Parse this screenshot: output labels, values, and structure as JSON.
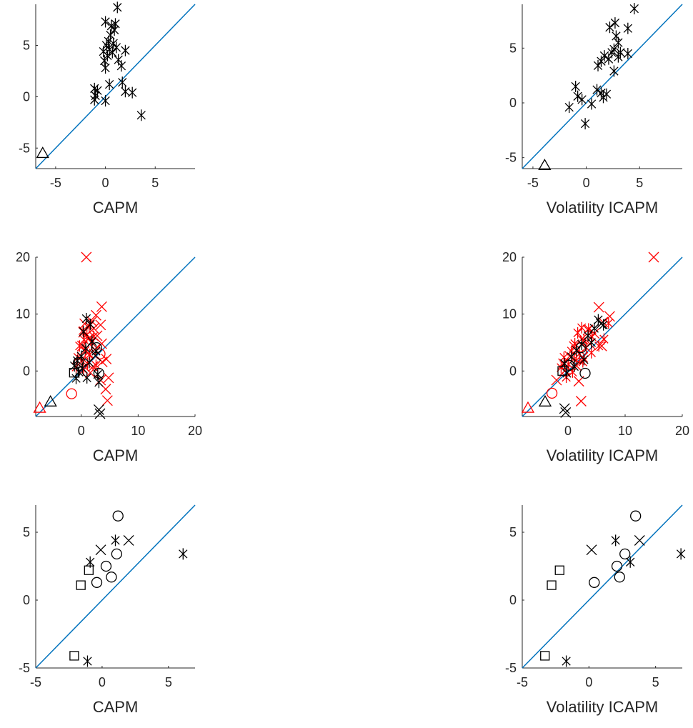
{
  "chart_data": [
    {
      "type": "scatter",
      "xlabel": "CAPM",
      "xlim": [
        -7,
        9
      ],
      "ylim": [
        -7,
        9
      ],
      "xticks": [
        "-5",
        "0",
        "5"
      ],
      "yticks": [
        "-5",
        "0",
        "5"
      ],
      "diagonal": true,
      "series": [
        {
          "marker": "asterisk",
          "color": "#000000",
          "points": [
            [
              1.2,
              8.7
            ],
            [
              0.0,
              7.3
            ],
            [
              1.0,
              7.1
            ],
            [
              0.6,
              6.9
            ],
            [
              0.9,
              6.5
            ],
            [
              0.5,
              6.0
            ],
            [
              0.3,
              5.4
            ],
            [
              0.8,
              5.2
            ],
            [
              0.1,
              5.0
            ],
            [
              1.1,
              4.8
            ],
            [
              0.4,
              4.6
            ],
            [
              -0.2,
              4.4
            ],
            [
              2.0,
              4.5
            ],
            [
              0.7,
              4.3
            ],
            [
              0.2,
              4.0
            ],
            [
              1.3,
              3.6
            ],
            [
              -0.1,
              3.5
            ],
            [
              0.0,
              2.8
            ],
            [
              1.6,
              3.0
            ],
            [
              -1.1,
              0.8
            ],
            [
              -0.8,
              0.6
            ],
            [
              -1.0,
              0.1
            ],
            [
              -1.1,
              -0.3
            ],
            [
              0.0,
              -0.4
            ],
            [
              0.4,
              1.2
            ],
            [
              1.7,
              1.4
            ],
            [
              2.0,
              0.5
            ],
            [
              2.7,
              0.4
            ],
            [
              3.6,
              -1.8
            ]
          ]
        },
        {
          "marker": "triangle",
          "color": "#000000",
          "points": [
            [
              -6.3,
              -5.5
            ]
          ]
        }
      ]
    },
    {
      "type": "scatter",
      "xlabel": "Volatility ICAPM",
      "xlim": [
        -6,
        9
      ],
      "ylim": [
        -6,
        9
      ],
      "xticks": [
        "-5",
        "0",
        "5"
      ],
      "yticks": [
        "-5",
        "0",
        "5"
      ],
      "diagonal": true,
      "series": [
        {
          "marker": "asterisk",
          "color": "#000000",
          "points": [
            [
              4.5,
              8.6
            ],
            [
              2.7,
              7.3
            ],
            [
              2.2,
              6.9
            ],
            [
              3.9,
              6.8
            ],
            [
              2.8,
              6.1
            ],
            [
              3.0,
              5.5
            ],
            [
              2.6,
              4.9
            ],
            [
              3.2,
              4.6
            ],
            [
              2.4,
              4.6
            ],
            [
              3.9,
              4.5
            ],
            [
              1.7,
              4.3
            ],
            [
              2.1,
              4.0
            ],
            [
              1.4,
              3.8
            ],
            [
              1.1,
              3.4
            ],
            [
              3.0,
              4.2
            ],
            [
              2.6,
              2.9
            ],
            [
              -1.0,
              1.5
            ],
            [
              -0.8,
              0.6
            ],
            [
              -0.4,
              0.3
            ],
            [
              1.0,
              1.2
            ],
            [
              1.4,
              0.9
            ],
            [
              1.9,
              0.8
            ],
            [
              1.6,
              0.5
            ],
            [
              0.5,
              -0.1
            ],
            [
              -1.6,
              -0.4
            ],
            [
              -0.1,
              -1.9
            ]
          ]
        },
        {
          "marker": "triangle",
          "color": "#000000",
          "points": [
            [
              -3.9,
              -5.7
            ]
          ]
        }
      ]
    },
    {
      "type": "scatter",
      "xlabel": "CAPM",
      "xlim": [
        -8,
        20
      ],
      "ylim": [
        -8,
        20
      ],
      "xticks": [
        "0",
        "10",
        "20"
      ],
      "yticks": [
        "0",
        "10",
        "20"
      ],
      "diagonal": true,
      "series": [
        {
          "marker": "x",
          "color": "#ff0000",
          "points": [
            [
              0.9,
              20.0
            ],
            [
              3.6,
              11.3
            ],
            [
              2.6,
              9.8
            ],
            [
              1.9,
              8.7
            ],
            [
              3.4,
              8.1
            ],
            [
              0.6,
              8.3
            ],
            [
              2.2,
              7.5
            ],
            [
              0.4,
              6.8
            ],
            [
              2.8,
              6.2
            ],
            [
              1.3,
              5.7
            ],
            [
              3.6,
              4.8
            ],
            [
              0.2,
              4.4
            ],
            [
              2.4,
              3.8
            ],
            [
              1.1,
              3.1
            ],
            [
              4.4,
              2.1
            ],
            [
              3.7,
              1.6
            ],
            [
              2.1,
              0.8
            ],
            [
              4.8,
              -1.2
            ],
            [
              3.4,
              -1.6
            ],
            [
              4.3,
              -3.2
            ],
            [
              4.6,
              -5.2
            ],
            [
              1.6,
              -0.3
            ]
          ]
        },
        {
          "marker": "asterisk",
          "color": "#ff0000",
          "points": [
            [
              1.4,
              7.9
            ],
            [
              0.3,
              7.1
            ],
            [
              1.0,
              6.4
            ],
            [
              2.2,
              6.1
            ],
            [
              0.5,
              5.5
            ],
            [
              1.8,
              5.0
            ],
            [
              -0.3,
              4.4
            ],
            [
              0.7,
              3.6
            ],
            [
              1.5,
              2.9
            ],
            [
              -0.6,
              2.4
            ],
            [
              0.1,
              1.8
            ],
            [
              1.1,
              1.3
            ],
            [
              -0.9,
              0.7
            ],
            [
              0.4,
              0.2
            ],
            [
              2.6,
              1.0
            ]
          ]
        },
        {
          "marker": "circle",
          "color": "#ff0000",
          "points": [
            [
              -1.7,
              -4.0
            ],
            [
              3.3,
              3.0
            ]
          ]
        },
        {
          "marker": "triangle",
          "color": "#ff0000",
          "points": [
            [
              -7.3,
              -6.5
            ]
          ]
        },
        {
          "marker": "asterisk",
          "color": "#000000",
          "points": [
            [
              0.9,
              9.2
            ],
            [
              1.6,
              8.2
            ],
            [
              0.4,
              6.9
            ],
            [
              1.9,
              5.2
            ],
            [
              0.8,
              4.0
            ],
            [
              2.6,
              3.5
            ],
            [
              0.0,
              2.6
            ],
            [
              -0.7,
              1.8
            ],
            [
              1.4,
              1.5
            ],
            [
              -1.2,
              0.9
            ],
            [
              0.2,
              0.5
            ],
            [
              -0.4,
              -0.2
            ],
            [
              2.9,
              -0.6
            ],
            [
              1.0,
              -1.2
            ],
            [
              3.1,
              -2.0
            ],
            [
              -0.9,
              -1.3
            ]
          ]
        },
        {
          "marker": "circle",
          "color": "#000000",
          "points": [
            [
              2.7,
              4.1
            ],
            [
              3.1,
              -0.4
            ],
            [
              -0.5,
              1.5
            ]
          ]
        },
        {
          "marker": "x",
          "color": "#000000",
          "points": [
            [
              3.1,
              -6.8
            ],
            [
              3.3,
              -7.5
            ],
            [
              2.5,
              2.7
            ]
          ]
        },
        {
          "marker": "square",
          "color": "#000000",
          "points": [
            [
              -1.3,
              -0.3
            ]
          ]
        },
        {
          "marker": "triangle",
          "color": "#000000",
          "points": [
            [
              -5.4,
              -5.4
            ]
          ]
        }
      ]
    },
    {
      "type": "scatter",
      "xlabel": "Volatility ICAPM",
      "xlim": [
        -8,
        20
      ],
      "ylim": [
        -8,
        20
      ],
      "xticks": [
        "0",
        "10",
        "20"
      ],
      "yticks": [
        "0",
        "10",
        "20"
      ],
      "diagonal": true,
      "series": [
        {
          "marker": "x",
          "color": "#ff0000",
          "points": [
            [
              15.0,
              20.0
            ],
            [
              5.4,
              11.2
            ],
            [
              7.3,
              9.6
            ],
            [
              6.1,
              8.6
            ],
            [
              3.5,
              7.2
            ],
            [
              4.6,
              6.6
            ],
            [
              2.4,
              5.6
            ],
            [
              3.8,
              4.8
            ],
            [
              1.1,
              4.3
            ],
            [
              5.9,
              4.4
            ],
            [
              0.3,
              2.6
            ],
            [
              2.6,
              2.4
            ],
            [
              -0.8,
              1.3
            ],
            [
              1.5,
              0.9
            ],
            [
              2.3,
              -5.3
            ],
            [
              -2.0,
              -1.6
            ],
            [
              -0.5,
              0.1
            ],
            [
              1.9,
              -1.8
            ]
          ]
        },
        {
          "marker": "asterisk",
          "color": "#ff0000",
          "points": [
            [
              2.4,
              7.6
            ],
            [
              3.6,
              7.4
            ],
            [
              1.7,
              6.7
            ],
            [
              4.2,
              6.0
            ],
            [
              2.8,
              5.4
            ],
            [
              1.2,
              4.8
            ],
            [
              3.2,
              4.1
            ],
            [
              0.6,
              3.5
            ],
            [
              2.0,
              3.0
            ],
            [
              -0.7,
              2.4
            ],
            [
              1.5,
              1.9
            ],
            [
              0.1,
              1.2
            ],
            [
              -1.2,
              0.6
            ],
            [
              2.6,
              1.6
            ],
            [
              0.8,
              -0.2
            ],
            [
              -0.3,
              -1.1
            ],
            [
              4.1,
              3.2
            ],
            [
              5.4,
              4.4
            ],
            [
              6.3,
              5.6
            ],
            [
              7.1,
              8.4
            ]
          ]
        },
        {
          "marker": "circle",
          "color": "#ff0000",
          "points": [
            [
              -2.8,
              -3.9
            ],
            [
              2.0,
              2.5
            ]
          ]
        },
        {
          "marker": "triangle",
          "color": "#ff0000",
          "points": [
            [
              -7.0,
              -6.5
            ]
          ]
        },
        {
          "marker": "asterisk",
          "color": "#000000",
          "points": [
            [
              5.3,
              9.0
            ],
            [
              4.6,
              7.5
            ],
            [
              3.5,
              6.2
            ],
            [
              2.4,
              4.7
            ],
            [
              1.5,
              3.6
            ],
            [
              0.6,
              2.5
            ],
            [
              -0.6,
              1.3
            ],
            [
              1.1,
              0.8
            ],
            [
              -0.2,
              -0.4
            ],
            [
              2.8,
              2.0
            ],
            [
              4.1,
              5.0
            ],
            [
              6.2,
              8.1
            ]
          ]
        },
        {
          "marker": "circle",
          "color": "#000000",
          "points": [
            [
              2.3,
              4.1
            ],
            [
              3.0,
              -0.4
            ],
            [
              0.2,
              1.0
            ]
          ]
        },
        {
          "marker": "x",
          "color": "#000000",
          "points": [
            [
              -0.6,
              -6.6
            ],
            [
              -0.4,
              -7.3
            ],
            [
              5.8,
              8.3
            ]
          ]
        },
        {
          "marker": "square",
          "color": "#000000",
          "points": [
            [
              -1.0,
              0.0
            ]
          ]
        },
        {
          "marker": "triangle",
          "color": "#000000",
          "points": [
            [
              -4.0,
              -5.4
            ]
          ]
        }
      ]
    },
    {
      "type": "scatter",
      "xlabel": "CAPM",
      "xlim": [
        -5,
        7
      ],
      "ylim": [
        -5,
        7
      ],
      "xticks": [
        "-5",
        "0",
        "5"
      ],
      "yticks": [
        "-5",
        "0",
        "5"
      ],
      "diagonal": true,
      "series": [
        {
          "marker": "circle",
          "color": "#000000",
          "points": [
            [
              1.2,
              6.2
            ],
            [
              0.3,
              2.5
            ],
            [
              1.1,
              3.4
            ],
            [
              0.7,
              1.7
            ],
            [
              -0.4,
              1.3
            ]
          ]
        },
        {
          "marker": "asterisk",
          "color": "#000000",
          "points": [
            [
              1.0,
              4.4
            ],
            [
              -0.9,
              2.8
            ],
            [
              6.1,
              3.4
            ],
            [
              -1.1,
              -4.5
            ]
          ]
        },
        {
          "marker": "x",
          "color": "#000000",
          "points": [
            [
              2.0,
              4.4
            ],
            [
              -0.1,
              3.7
            ]
          ]
        },
        {
          "marker": "square",
          "color": "#000000",
          "points": [
            [
              -1.0,
              2.2
            ],
            [
              -1.6,
              1.1
            ],
            [
              -2.1,
              -4.1
            ]
          ]
        }
      ]
    },
    {
      "type": "scatter",
      "xlabel": "Volatility ICAPM",
      "xlim": [
        -5,
        7
      ],
      "ylim": [
        -5,
        7
      ],
      "xticks": [
        "-5",
        "0",
        "5"
      ],
      "yticks": [
        "-5",
        "0",
        "5"
      ],
      "diagonal": true,
      "series": [
        {
          "marker": "circle",
          "color": "#000000",
          "points": [
            [
              3.5,
              6.2
            ],
            [
              2.1,
              2.5
            ],
            [
              2.7,
              3.4
            ],
            [
              2.3,
              1.7
            ],
            [
              0.4,
              1.3
            ]
          ]
        },
        {
          "marker": "asterisk",
          "color": "#000000",
          "points": [
            [
              2.0,
              4.4
            ],
            [
              3.1,
              2.8
            ],
            [
              6.9,
              3.4
            ],
            [
              -1.7,
              -4.5
            ]
          ]
        },
        {
          "marker": "x",
          "color": "#000000",
          "points": [
            [
              3.8,
              4.4
            ],
            [
              0.2,
              3.7
            ]
          ]
        },
        {
          "marker": "square",
          "color": "#000000",
          "points": [
            [
              -2.2,
              2.2
            ],
            [
              -2.8,
              1.1
            ],
            [
              -3.3,
              -4.1
            ]
          ]
        }
      ]
    }
  ]
}
